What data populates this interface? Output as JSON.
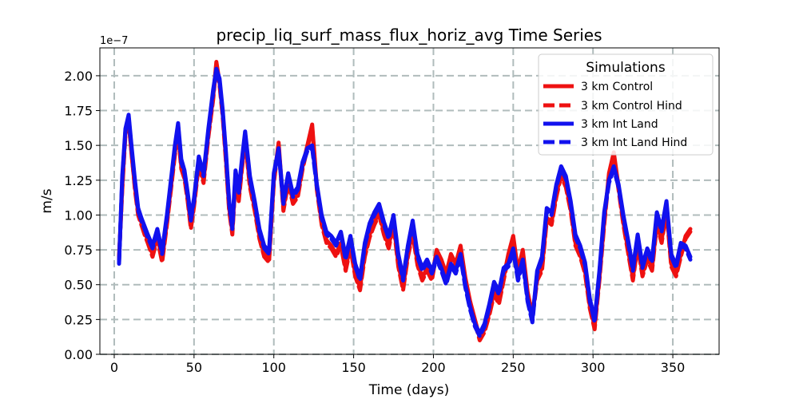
{
  "chart_data": {
    "type": "line",
    "title": "precip_liq_surf_mass_flux_horiz_avg Time Series",
    "xlabel": "Time (days)",
    "ylabel": "m/s",
    "y_scale_label": "1e−7",
    "xlim": [
      -9,
      379
    ],
    "ylim": [
      0.0,
      2.2
    ],
    "x_ticks": [
      0,
      50,
      100,
      150,
      200,
      250,
      300,
      350
    ],
    "x_tick_labels": [
      "0",
      "50",
      "100",
      "150",
      "200",
      "250",
      "300",
      "350"
    ],
    "y_ticks": [
      0.0,
      0.25,
      0.5,
      0.75,
      1.0,
      1.25,
      1.5,
      1.75,
      2.0
    ],
    "y_tick_labels": [
      "0.00",
      "0.25",
      "0.50",
      "0.75",
      "1.00",
      "1.25",
      "1.50",
      "1.75",
      "2.00"
    ],
    "grid": true,
    "grid_color": "#b0bcbc",
    "legend": {
      "title": "Simulations",
      "placement": "top-right"
    },
    "series": [
      {
        "name": "3 km Control",
        "color": "#ee1111",
        "style": "solid",
        "x": [
          3,
          5,
          7,
          9,
          11,
          13,
          15,
          17,
          19,
          21,
          24,
          27,
          30,
          33,
          36,
          38,
          40,
          42,
          44,
          46,
          48,
          50,
          53,
          56,
          59,
          62,
          64,
          66,
          68,
          70,
          72,
          74,
          76,
          78,
          80,
          82,
          85,
          88,
          91,
          94,
          97,
          100,
          103,
          106,
          109,
          112,
          115,
          118,
          121,
          124,
          127,
          130,
          133,
          136,
          139,
          142,
          145,
          148,
          151,
          154,
          157,
          160,
          163,
          166,
          169,
          172,
          175,
          178,
          181,
          184,
          187,
          190,
          193,
          196,
          199,
          202,
          205,
          208,
          211,
          214,
          217,
          220,
          223,
          226,
          229,
          232,
          235,
          238,
          241,
          244,
          247,
          250,
          253,
          256,
          259,
          262,
          265,
          268,
          271,
          274,
          277,
          280,
          283,
          286,
          289,
          292,
          295,
          298,
          301,
          304,
          307,
          310,
          313,
          316,
          319,
          322,
          325,
          328,
          331,
          334,
          337,
          340,
          343,
          346,
          349,
          352,
          355,
          358,
          361
        ],
        "y": [
          0.7,
          1.2,
          1.6,
          1.68,
          1.42,
          1.2,
          1.02,
          0.95,
          0.88,
          0.82,
          0.72,
          0.85,
          0.68,
          0.95,
          1.25,
          1.45,
          1.6,
          1.35,
          1.28,
          1.12,
          0.92,
          1.08,
          1.38,
          1.25,
          1.58,
          1.85,
          2.1,
          1.95,
          1.72,
          1.4,
          1.05,
          0.88,
          1.28,
          1.12,
          1.35,
          1.55,
          1.22,
          1.05,
          0.85,
          0.72,
          0.68,
          1.25,
          1.52,
          1.05,
          1.25,
          1.1,
          1.15,
          1.35,
          1.5,
          1.65,
          1.2,
          0.95,
          0.82,
          0.78,
          0.72,
          0.8,
          0.62,
          0.78,
          0.58,
          0.48,
          0.72,
          0.86,
          0.95,
          1.02,
          0.88,
          0.78,
          0.95,
          0.65,
          0.48,
          0.72,
          0.88,
          0.66,
          0.55,
          0.62,
          0.55,
          0.75,
          0.68,
          0.58,
          0.72,
          0.65,
          0.78,
          0.55,
          0.38,
          0.25,
          0.12,
          0.18,
          0.3,
          0.45,
          0.38,
          0.55,
          0.72,
          0.85,
          0.6,
          0.75,
          0.45,
          0.28,
          0.55,
          0.62,
          0.98,
          0.95,
          1.15,
          1.3,
          1.22,
          1.05,
          0.8,
          0.72,
          0.6,
          0.35,
          0.2,
          0.55,
          0.95,
          1.3,
          1.45,
          1.2,
          0.95,
          0.75,
          0.55,
          0.8,
          0.58,
          0.7,
          0.62,
          0.95,
          0.82,
          1.05,
          0.65,
          0.58,
          0.72,
          0.85,
          0.9
        ]
      },
      {
        "name": "3 km Control Hind",
        "color": "#ee1111",
        "style": "dashed",
        "x": [
          3,
          5,
          7,
          9,
          11,
          13,
          15,
          17,
          19,
          21,
          24,
          27,
          30,
          33,
          36,
          38,
          40,
          42,
          44,
          46,
          48,
          50,
          53,
          56,
          59,
          62,
          64,
          66,
          68,
          70,
          72,
          74,
          76,
          78,
          80,
          82,
          85,
          88,
          91,
          94,
          97,
          100,
          103,
          106,
          109,
          112,
          115,
          118,
          121,
          124,
          127,
          130,
          133,
          136,
          139,
          142,
          145,
          148,
          151,
          154,
          157,
          160,
          163,
          166,
          169,
          172,
          175,
          178,
          181,
          184,
          187,
          190,
          193,
          196,
          199,
          202,
          205,
          208,
          211,
          214,
          217,
          220,
          223,
          226,
          229,
          232,
          235,
          238,
          241,
          244,
          247,
          250,
          253,
          256,
          259,
          262,
          265,
          268,
          271,
          274,
          277,
          280,
          283,
          286,
          289,
          292,
          295,
          298,
          301,
          304,
          307,
          310,
          313,
          316,
          319,
          322,
          325,
          328,
          331,
          334,
          337,
          340,
          343,
          346,
          349,
          352,
          355,
          358,
          361
        ],
        "y": [
          0.68,
          1.18,
          1.58,
          1.66,
          1.44,
          1.18,
          1.0,
          0.93,
          0.86,
          0.8,
          0.7,
          0.83,
          0.66,
          0.93,
          1.23,
          1.43,
          1.58,
          1.33,
          1.26,
          1.1,
          0.9,
          1.06,
          1.36,
          1.23,
          1.56,
          1.83,
          2.08,
          1.93,
          1.7,
          1.38,
          1.03,
          0.86,
          1.26,
          1.1,
          1.33,
          1.53,
          1.2,
          1.03,
          0.83,
          0.7,
          0.66,
          1.23,
          1.5,
          1.03,
          1.23,
          1.08,
          1.13,
          1.33,
          1.48,
          1.63,
          1.18,
          0.93,
          0.8,
          0.76,
          0.7,
          0.78,
          0.6,
          0.76,
          0.56,
          0.46,
          0.7,
          0.84,
          0.93,
          1.0,
          0.86,
          0.76,
          0.93,
          0.63,
          0.46,
          0.7,
          0.86,
          0.64,
          0.53,
          0.6,
          0.53,
          0.73,
          0.66,
          0.56,
          0.7,
          0.63,
          0.76,
          0.53,
          0.36,
          0.23,
          0.1,
          0.16,
          0.28,
          0.43,
          0.36,
          0.53,
          0.7,
          0.83,
          0.58,
          0.73,
          0.43,
          0.26,
          0.53,
          0.6,
          0.96,
          0.93,
          1.13,
          1.28,
          1.2,
          1.03,
          0.78,
          0.7,
          0.58,
          0.33,
          0.18,
          0.53,
          0.93,
          1.28,
          1.43,
          1.18,
          0.93,
          0.73,
          0.53,
          0.78,
          0.56,
          0.68,
          0.6,
          0.93,
          0.8,
          1.03,
          0.63,
          0.56,
          0.7,
          0.83,
          0.88
        ]
      },
      {
        "name": "3 km Int Land",
        "color": "#1111ee",
        "style": "solid",
        "x": [
          3,
          5,
          7,
          9,
          11,
          13,
          15,
          17,
          19,
          21,
          24,
          27,
          30,
          33,
          36,
          38,
          40,
          42,
          44,
          46,
          48,
          50,
          53,
          56,
          59,
          62,
          64,
          66,
          68,
          70,
          72,
          74,
          76,
          78,
          80,
          82,
          85,
          88,
          91,
          94,
          97,
          100,
          103,
          106,
          109,
          112,
          115,
          118,
          121,
          124,
          127,
          130,
          133,
          136,
          139,
          142,
          145,
          148,
          151,
          154,
          157,
          160,
          163,
          166,
          169,
          172,
          175,
          178,
          181,
          184,
          187,
          190,
          193,
          196,
          199,
          202,
          205,
          208,
          211,
          214,
          217,
          220,
          223,
          226,
          229,
          232,
          235,
          238,
          241,
          244,
          247,
          250,
          253,
          256,
          259,
          262,
          265,
          268,
          271,
          274,
          277,
          280,
          283,
          286,
          289,
          292,
          295,
          298,
          301,
          304,
          307,
          310,
          313,
          316,
          319,
          322,
          325,
          328,
          331,
          334,
          337,
          340,
          343,
          346,
          349,
          352,
          355,
          358,
          361
        ],
        "y": [
          0.65,
          1.28,
          1.62,
          1.72,
          1.48,
          1.25,
          1.05,
          0.98,
          0.92,
          0.86,
          0.78,
          0.9,
          0.74,
          1.0,
          1.3,
          1.5,
          1.66,
          1.4,
          1.32,
          1.16,
          0.98,
          1.12,
          1.42,
          1.3,
          1.62,
          1.9,
          2.05,
          1.98,
          1.75,
          1.45,
          1.1,
          0.92,
          1.32,
          1.18,
          1.4,
          1.6,
          1.28,
          1.1,
          0.9,
          0.78,
          0.74,
          1.3,
          1.48,
          1.1,
          1.3,
          1.15,
          1.2,
          1.38,
          1.48,
          1.5,
          1.22,
          1.0,
          0.88,
          0.85,
          0.8,
          0.88,
          0.7,
          0.85,
          0.65,
          0.55,
          0.8,
          0.94,
          1.02,
          1.08,
          0.95,
          0.85,
          1.0,
          0.72,
          0.55,
          0.78,
          0.96,
          0.72,
          0.62,
          0.68,
          0.6,
          0.7,
          0.62,
          0.52,
          0.65,
          0.6,
          0.72,
          0.5,
          0.34,
          0.22,
          0.15,
          0.22,
          0.36,
          0.52,
          0.45,
          0.62,
          0.65,
          0.76,
          0.55,
          0.68,
          0.4,
          0.25,
          0.6,
          0.7,
          1.05,
          1.02,
          1.22,
          1.35,
          1.28,
          1.1,
          0.86,
          0.78,
          0.66,
          0.4,
          0.25,
          0.6,
          1.02,
          1.25,
          1.35,
          1.22,
          1.0,
          0.82,
          0.62,
          0.86,
          0.64,
          0.76,
          0.68,
          1.02,
          0.9,
          1.1,
          0.72,
          0.64,
          0.8,
          0.78,
          0.7
        ]
      },
      {
        "name": "3 km Int Land Hind",
        "color": "#1111ee",
        "style": "dashed",
        "x": [
          3,
          5,
          7,
          9,
          11,
          13,
          15,
          17,
          19,
          21,
          24,
          27,
          30,
          33,
          36,
          38,
          40,
          42,
          44,
          46,
          48,
          50,
          53,
          56,
          59,
          62,
          64,
          66,
          68,
          70,
          72,
          74,
          76,
          78,
          80,
          82,
          85,
          88,
          91,
          94,
          97,
          100,
          103,
          106,
          109,
          112,
          115,
          118,
          121,
          124,
          127,
          130,
          133,
          136,
          139,
          142,
          145,
          148,
          151,
          154,
          157,
          160,
          163,
          166,
          169,
          172,
          175,
          178,
          181,
          184,
          187,
          190,
          193,
          196,
          199,
          202,
          205,
          208,
          211,
          214,
          217,
          220,
          223,
          226,
          229,
          232,
          235,
          238,
          241,
          244,
          247,
          250,
          253,
          256,
          259,
          262,
          265,
          268,
          271,
          274,
          277,
          280,
          283,
          286,
          289,
          292,
          295,
          298,
          301,
          304,
          307,
          310,
          313,
          316,
          319,
          322,
          325,
          328,
          331,
          334,
          337,
          340,
          343,
          346,
          349,
          352,
          355,
          358,
          361
        ],
        "y": [
          0.66,
          1.26,
          1.6,
          1.7,
          1.46,
          1.23,
          1.03,
          0.96,
          0.9,
          0.84,
          0.76,
          0.88,
          0.72,
          0.98,
          1.28,
          1.48,
          1.64,
          1.38,
          1.3,
          1.14,
          0.96,
          1.1,
          1.4,
          1.28,
          1.6,
          1.88,
          2.03,
          1.96,
          1.73,
          1.43,
          1.08,
          0.9,
          1.3,
          1.16,
          1.38,
          1.58,
          1.26,
          1.08,
          0.88,
          0.76,
          0.72,
          1.28,
          1.46,
          1.08,
          1.28,
          1.13,
          1.18,
          1.36,
          1.46,
          1.48,
          1.2,
          0.98,
          0.86,
          0.83,
          0.78,
          0.86,
          0.68,
          0.83,
          0.63,
          0.53,
          0.78,
          0.92,
          1.0,
          1.06,
          0.93,
          0.83,
          0.98,
          0.7,
          0.53,
          0.76,
          0.94,
          0.7,
          0.6,
          0.66,
          0.58,
          0.68,
          0.6,
          0.5,
          0.63,
          0.58,
          0.7,
          0.48,
          0.32,
          0.2,
          0.13,
          0.2,
          0.34,
          0.5,
          0.43,
          0.6,
          0.63,
          0.74,
          0.53,
          0.66,
          0.38,
          0.23,
          0.58,
          0.68,
          1.03,
          1.0,
          1.2,
          1.33,
          1.26,
          1.08,
          0.84,
          0.76,
          0.64,
          0.38,
          0.23,
          0.58,
          1.0,
          1.23,
          1.33,
          1.2,
          0.98,
          0.8,
          0.6,
          0.84,
          0.62,
          0.74,
          0.66,
          1.0,
          0.88,
          1.08,
          0.7,
          0.62,
          0.78,
          0.76,
          0.68
        ]
      }
    ]
  }
}
